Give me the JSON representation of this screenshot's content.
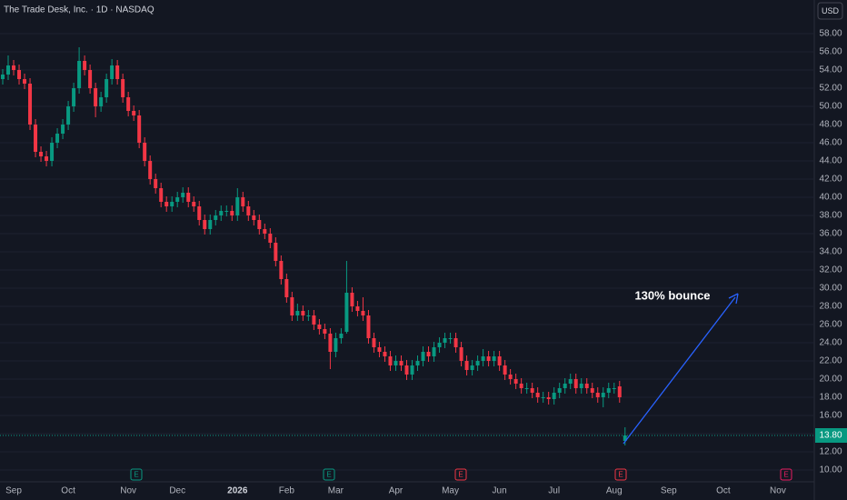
{
  "chart_data": {
    "type": "candlestick",
    "title": "The Trade Desk, Inc. · 1D · NASDAQ",
    "currency": "USD",
    "annotation": "130% bounce",
    "up_color": "#089981",
    "down_color": "#f23645",
    "grid": true,
    "ylim": [
      8.7,
      61.7
    ],
    "yticks": [
      {
        "value": 10,
        "label": "10.00"
      },
      {
        "value": 12,
        "label": "12.00"
      },
      {
        "value": 14,
        "label": "14.00"
      },
      {
        "value": 16,
        "label": "16.00"
      },
      {
        "value": 18,
        "label": "18.00"
      },
      {
        "value": 20,
        "label": "20.00"
      },
      {
        "value": 22,
        "label": "22.00"
      },
      {
        "value": 24,
        "label": "24.00"
      },
      {
        "value": 26,
        "label": "26.00"
      },
      {
        "value": 28,
        "label": "28.00"
      },
      {
        "value": 30,
        "label": "30.00"
      },
      {
        "value": 32,
        "label": "32.00"
      },
      {
        "value": 34,
        "label": "34.00"
      },
      {
        "value": 36,
        "label": "36.00"
      },
      {
        "value": 38,
        "label": "38.00"
      },
      {
        "value": 40,
        "label": "40.00"
      },
      {
        "value": 42,
        "label": "42.00"
      },
      {
        "value": 44,
        "label": "44.00"
      },
      {
        "value": 46,
        "label": "46.00"
      },
      {
        "value": 48,
        "label": "48.00"
      },
      {
        "value": 50,
        "label": "50.00"
      },
      {
        "value": 52,
        "label": "52.00"
      },
      {
        "value": 54,
        "label": "54.00"
      },
      {
        "value": 56,
        "label": "56.00"
      },
      {
        "value": 58,
        "label": "58.00"
      }
    ],
    "last_price": {
      "value": 13.8,
      "label": "13.80"
    },
    "events": [
      {
        "label": "E",
        "color": "#089981"
      },
      {
        "label": "E",
        "color": "#089981"
      },
      {
        "label": "E",
        "color": "#f23645"
      },
      {
        "label": "E",
        "color": "#f23645"
      },
      {
        "label": "E",
        "color": "#e91e63"
      }
    ],
    "categories": [
      null,
      null,
      "Sep",
      null,
      null,
      null,
      null,
      null,
      null,
      null,
      null,
      null,
      "Oct",
      null,
      null,
      null,
      null,
      null,
      null,
      null,
      null,
      null,
      null,
      "Nov",
      null,
      null,
      null,
      null,
      null,
      null,
      null,
      null,
      "Dec",
      null,
      null,
      null,
      null,
      null,
      null,
      null,
      null,
      null,
      null,
      "2026",
      null,
      null,
      null,
      null,
      null,
      null,
      null,
      null,
      "Feb",
      null,
      null,
      null,
      null,
      null,
      null,
      null,
      null,
      "Mar",
      null,
      null,
      null,
      null,
      null,
      null,
      null,
      null,
      null,
      null,
      "Apr",
      null,
      null,
      null,
      null,
      null,
      null,
      null,
      null,
      null,
      "May",
      null,
      null,
      null,
      null,
      null,
      null,
      null,
      null,
      "Jun",
      null,
      null,
      null,
      null,
      null,
      null,
      null,
      null,
      null,
      "Jul",
      null,
      null,
      null,
      null,
      null,
      null,
      null,
      null,
      null,
      null,
      "Aug",
      null,
      null,
      null,
      null,
      null,
      null,
      null,
      null,
      null,
      "Sep",
      null,
      null,
      null,
      null,
      null,
      null,
      null,
      null,
      null,
      "Oct",
      null,
      null,
      null,
      null,
      null,
      null,
      null,
      null,
      null,
      "Nov",
      null,
      null,
      null,
      null,
      null,
      null
    ],
    "open": [
      53,
      53.5,
      54.5,
      54,
      53,
      52.5,
      48,
      45,
      44.5,
      44,
      46,
      47,
      48,
      50,
      52,
      55,
      54,
      52,
      50,
      51,
      53,
      54.5,
      53,
      51,
      49.5,
      49,
      46,
      44,
      42,
      41,
      39.5,
      39,
      39.5,
      40,
      40.5,
      39.5,
      39,
      37.5,
      36.5,
      37.5,
      38,
      38.5,
      38.5,
      38,
      40,
      39,
      38,
      37.5,
      36.5,
      36,
      35,
      33,
      31,
      29,
      27,
      27.5,
      27,
      27,
      26,
      25.5,
      25,
      23,
      24.5,
      25.2,
      29.5,
      28,
      27.5,
      27,
      24.5,
      23.5,
      23,
      22.5,
      21.5,
      22,
      21.5,
      20.5,
      21.5,
      22,
      23,
      22.5,
      23.5,
      24,
      24.5,
      24.5,
      23.5,
      22,
      21,
      21.5,
      22,
      22.5,
      22,
      22.5,
      21.5,
      20.5,
      20,
      19.5,
      19,
      19,
      18.5,
      18,
      18,
      17.8,
      18.5,
      19,
      19.5,
      20,
      19,
      19.5,
      19,
      18.5,
      18,
      18.5,
      19,
      19.2,
      13.2,
      null,
      null,
      null,
      null,
      null,
      null,
      null,
      null,
      null,
      null,
      null,
      null,
      null,
      null,
      null,
      null,
      null,
      null,
      null,
      null,
      null,
      null,
      null,
      null,
      null,
      null,
      null,
      null,
      null,
      null,
      null,
      null,
      null,
      null
    ],
    "high": [
      54.1,
      55.6,
      55.1,
      54.6,
      53.6,
      53.1,
      48.6,
      45.6,
      45.1,
      46.6,
      47.6,
      48.6,
      50.6,
      52.6,
      56.5,
      55.6,
      54.6,
      52.6,
      51.6,
      53.6,
      55.2,
      55.1,
      53.6,
      51.6,
      50.1,
      49.6,
      46.6,
      44.6,
      42.6,
      41.6,
      40.1,
      40.1,
      40.6,
      41.1,
      41.1,
      40.1,
      39.6,
      38.1,
      38.1,
      38.6,
      39.1,
      39.1,
      39.1,
      41,
      40.6,
      39.6,
      38.6,
      38.1,
      37.1,
      36.6,
      35.6,
      33.6,
      31.6,
      29.6,
      28.3,
      28.1,
      27.6,
      27.6,
      26.6,
      26.1,
      25.6,
      25.1,
      25.6,
      33,
      30.1,
      28.6,
      29,
      27.6,
      25.1,
      24.1,
      23.6,
      23.1,
      22.6,
      22.6,
      22.1,
      22.1,
      22.6,
      23.6,
      23.6,
      24.1,
      24.6,
      25.1,
      25.1,
      25.1,
      24.1,
      22.6,
      22.1,
      22.6,
      23.3,
      23.1,
      23.1,
      23.1,
      22.1,
      21.1,
      20.6,
      20.1,
      19.6,
      19.6,
      19.1,
      18.6,
      18.6,
      19.1,
      19.6,
      20.1,
      20.6,
      20.6,
      20.1,
      20.1,
      19.6,
      19.1,
      19.1,
      19.6,
      19.6,
      19.8,
      14.7,
      null,
      null,
      null,
      null,
      null,
      null,
      null,
      null,
      null,
      null,
      null,
      null,
      null,
      null,
      null,
      null,
      null,
      null,
      null,
      null,
      null,
      null,
      null,
      null,
      null,
      null,
      null,
      null,
      null,
      null,
      null,
      null,
      null,
      null
    ],
    "low": [
      52.4,
      52.9,
      53.4,
      52.4,
      51.9,
      47.4,
      44.4,
      43.9,
      43.4,
      43.4,
      45.4,
      46.4,
      47.4,
      49.4,
      51.4,
      53.4,
      51.4,
      48.8,
      49.4,
      50.4,
      52.4,
      52.4,
      50.4,
      48.9,
      48.4,
      45.4,
      43.4,
      41.4,
      40.4,
      38.9,
      38.4,
      38.4,
      38.9,
      39.4,
      38.9,
      38.4,
      36.9,
      35.9,
      35.9,
      36.9,
      37.4,
      37.9,
      37.4,
      37.4,
      38.4,
      37.4,
      36.9,
      35.9,
      35.4,
      34.4,
      32.4,
      30.4,
      28.4,
      26.4,
      26.4,
      26.4,
      26.4,
      25.4,
      24.9,
      24.4,
      21.1,
      22.4,
      23.9,
      25,
      27.4,
      26.9,
      26.4,
      23.9,
      22.9,
      22.4,
      21.9,
      20.9,
      20.9,
      20.9,
      19.9,
      19.9,
      20.9,
      21.4,
      21.9,
      21.9,
      22.9,
      23.4,
      23.9,
      22.9,
      21.4,
      20.4,
      20.4,
      20.9,
      21.4,
      21.4,
      21.4,
      20.9,
      19.9,
      19.4,
      18.9,
      18.4,
      18.4,
      17.9,
      17.4,
      17.4,
      17.2,
      17.2,
      17.9,
      18.4,
      18.9,
      18.4,
      18.4,
      18.4,
      17.9,
      17.4,
      16.9,
      17.9,
      18.4,
      17.4,
      12.7,
      null,
      null,
      null,
      null,
      null,
      null,
      null,
      null,
      null,
      null,
      null,
      null,
      null,
      null,
      null,
      null,
      null,
      null,
      null,
      null,
      null,
      null,
      null,
      null,
      null,
      null,
      null,
      null,
      null,
      null,
      null,
      null,
      null,
      null
    ],
    "close": [
      53.5,
      54.5,
      54,
      53,
      52.5,
      48,
      45,
      44.5,
      44,
      46,
      47,
      48,
      50,
      52,
      55,
      54,
      52,
      50,
      51,
      53,
      54.5,
      53,
      51,
      49.5,
      49,
      46,
      44,
      42,
      41,
      39.5,
      39,
      39.5,
      40,
      40.5,
      39.5,
      39,
      37.5,
      36.5,
      37.5,
      38,
      38.5,
      38.5,
      38,
      40,
      39,
      38,
      37.5,
      36.5,
      36,
      35,
      33,
      31,
      29,
      27,
      27.5,
      27,
      27,
      26,
      25.5,
      25,
      23,
      24.5,
      25,
      29.5,
      28,
      27.5,
      27,
      24.5,
      23.5,
      23,
      22.5,
      21.5,
      22,
      21.5,
      20.5,
      21.5,
      22,
      23,
      22.5,
      23.5,
      24,
      24.5,
      24.5,
      23.5,
      22,
      21,
      21.5,
      22,
      22.5,
      22,
      22.5,
      21.5,
      20.5,
      20,
      19.5,
      19,
      19,
      18.5,
      18,
      18,
      17.8,
      18.5,
      19,
      19.5,
      20,
      19,
      19.5,
      19,
      18.5,
      18,
      18.5,
      19,
      19,
      18,
      13.8,
      null,
      null,
      null,
      null,
      null,
      null,
      null,
      null,
      null,
      null,
      null,
      null,
      null,
      null,
      null,
      null,
      null,
      null,
      null,
      null,
      null,
      null,
      null,
      null,
      null,
      null,
      null,
      null,
      null,
      null,
      null,
      null,
      null,
      null
    ]
  }
}
